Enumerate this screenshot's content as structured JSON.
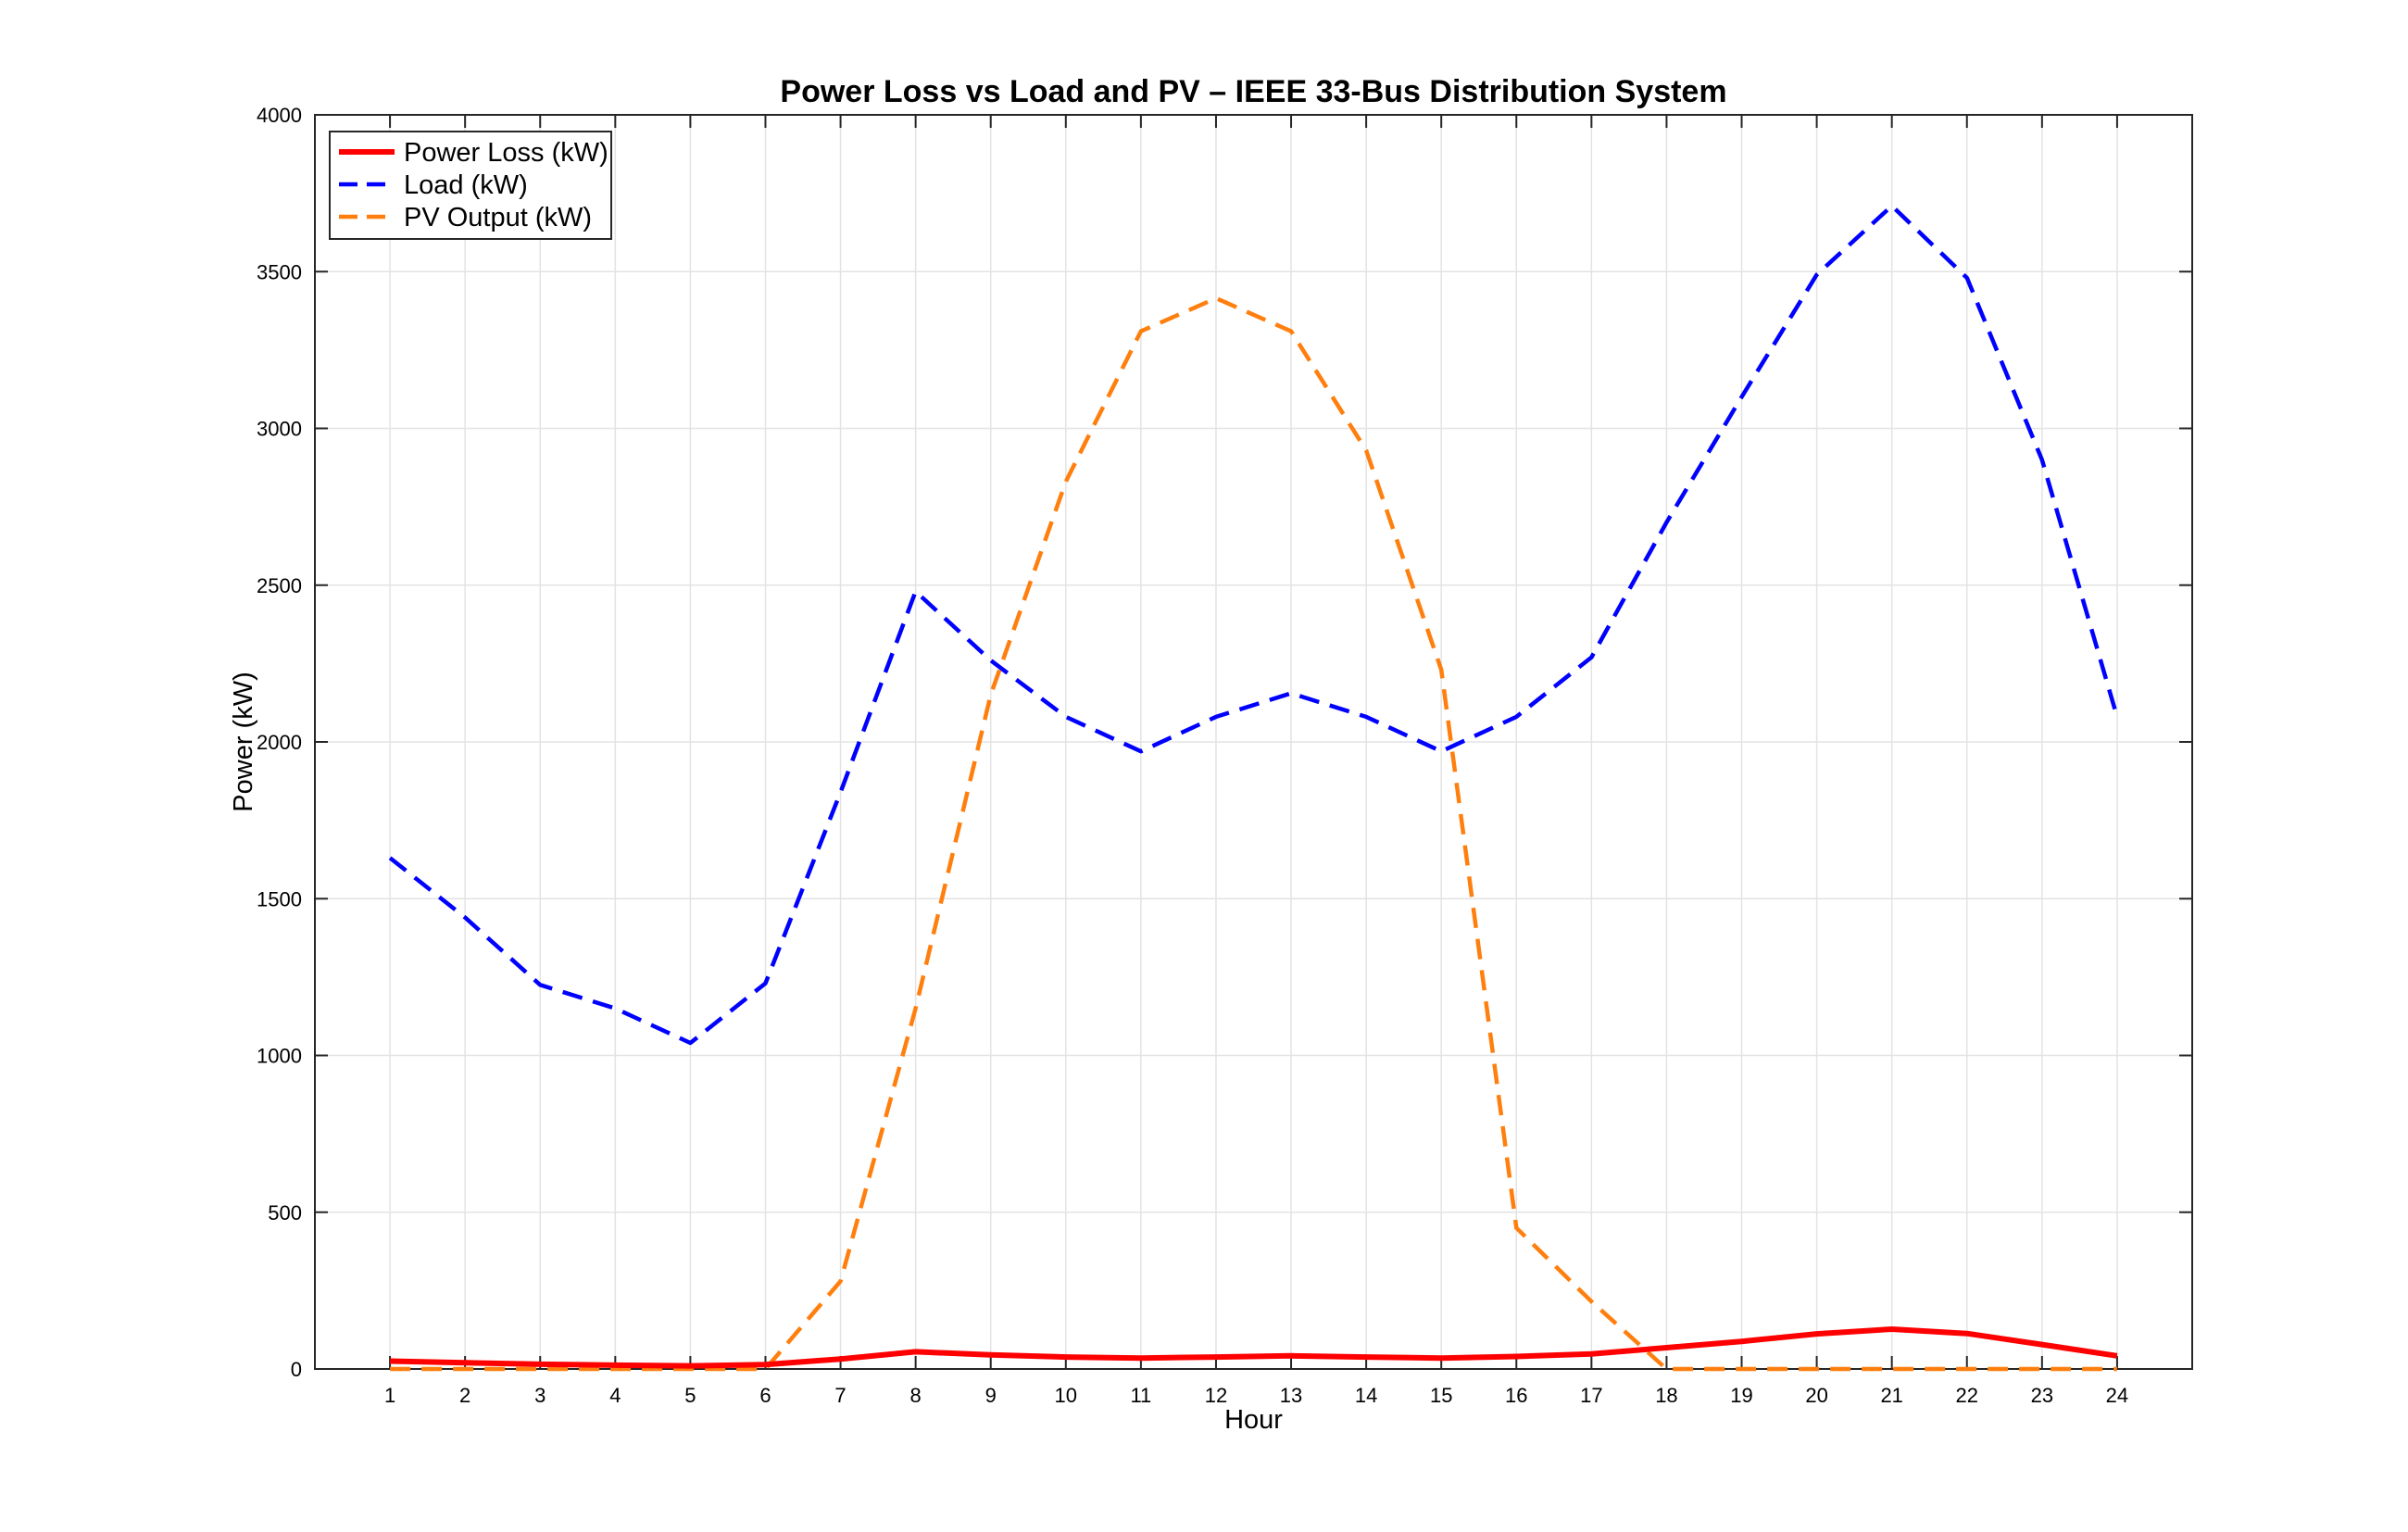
{
  "chart_data": {
    "type": "line",
    "title": "Power Loss vs Load and PV – IEEE 33-Bus Distribution System",
    "xlabel": "Hour",
    "ylabel": "Power (kW)",
    "xlim": [
      0,
      25
    ],
    "ylim": [
      0,
      4000
    ],
    "x": [
      1,
      2,
      3,
      4,
      5,
      6,
      7,
      8,
      9,
      10,
      11,
      12,
      13,
      14,
      15,
      16,
      17,
      18,
      19,
      20,
      21,
      22,
      23,
      24
    ],
    "x_ticks": [
      1,
      2,
      3,
      4,
      5,
      6,
      7,
      8,
      9,
      10,
      11,
      12,
      13,
      14,
      15,
      16,
      17,
      18,
      19,
      20,
      21,
      22,
      23,
      24
    ],
    "y_ticks": [
      0,
      500,
      1000,
      1500,
      2000,
      2500,
      3000,
      3500,
      4000
    ],
    "grid": true,
    "legend_position": "top-left",
    "series": [
      {
        "name": "Power Loss (kW)",
        "color": "#ff0000",
        "style": "solid",
        "values": [
          25,
          20,
          15,
          12,
          10,
          14,
          32,
          55,
          45,
          38,
          35,
          38,
          42,
          38,
          35,
          40,
          48,
          68,
          88,
          112,
          127,
          113,
          78,
          42
        ]
      },
      {
        "name": "Load (kW)",
        "color": "#0000ff",
        "style": "dashed",
        "values": [
          1630,
          1440,
          1225,
          1150,
          1040,
          1230,
          1840,
          2480,
          2260,
          2080,
          1970,
          2080,
          2155,
          2080,
          1970,
          2080,
          2270,
          2700,
          3100,
          3490,
          3710,
          3480,
          2900,
          2080
        ]
      },
      {
        "name": "PV Output (kW)",
        "color": "#ff7f0e",
        "style": "dashed",
        "values": [
          0,
          0,
          0,
          0,
          0,
          0,
          280,
          1150,
          2150,
          2830,
          3310,
          3415,
          3310,
          2930,
          2230,
          450,
          215,
          0,
          0,
          0,
          0,
          0,
          0,
          0
        ]
      }
    ]
  }
}
